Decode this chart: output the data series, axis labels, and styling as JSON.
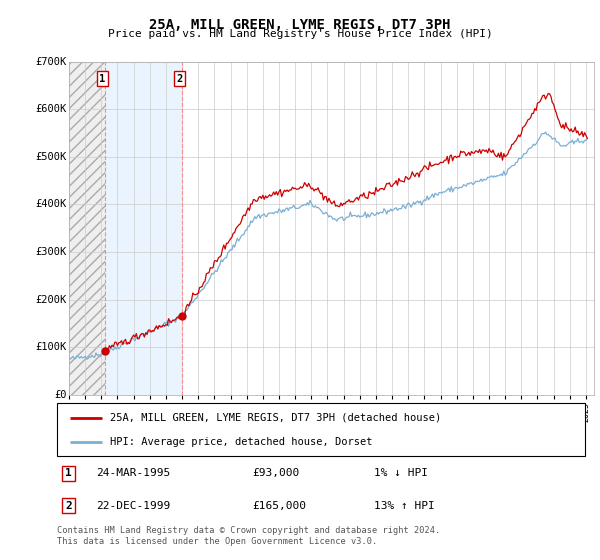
{
  "title": "25A, MILL GREEN, LYME REGIS, DT7 3PH",
  "subtitle": "Price paid vs. HM Land Registry's House Price Index (HPI)",
  "ylim": [
    0,
    700000
  ],
  "yticks": [
    0,
    100000,
    200000,
    300000,
    400000,
    500000,
    600000,
    700000
  ],
  "ytick_labels": [
    "£0",
    "£100K",
    "£200K",
    "£300K",
    "£400K",
    "£500K",
    "£600K",
    "£700K"
  ],
  "xlim_start": 1993.0,
  "xlim_end": 2025.5,
  "sale1_date": 1995.23,
  "sale1_price": 93000,
  "sale1_label": "1",
  "sale2_date": 1999.98,
  "sale2_price": 165000,
  "sale2_label": "2",
  "legend_line1": "25A, MILL GREEN, LYME REGIS, DT7 3PH (detached house)",
  "legend_line2": "HPI: Average price, detached house, Dorset",
  "footnote": "Contains HM Land Registry data © Crown copyright and database right 2024.\nThis data is licensed under the Open Government Licence v3.0.",
  "price_color": "#cc0000",
  "hpi_color": "#7bafd4",
  "grid_color": "#cccccc",
  "vline_color": "#ff8888",
  "highlight_bg": "#ddeeff",
  "hatch_facecolor": "#efefef"
}
